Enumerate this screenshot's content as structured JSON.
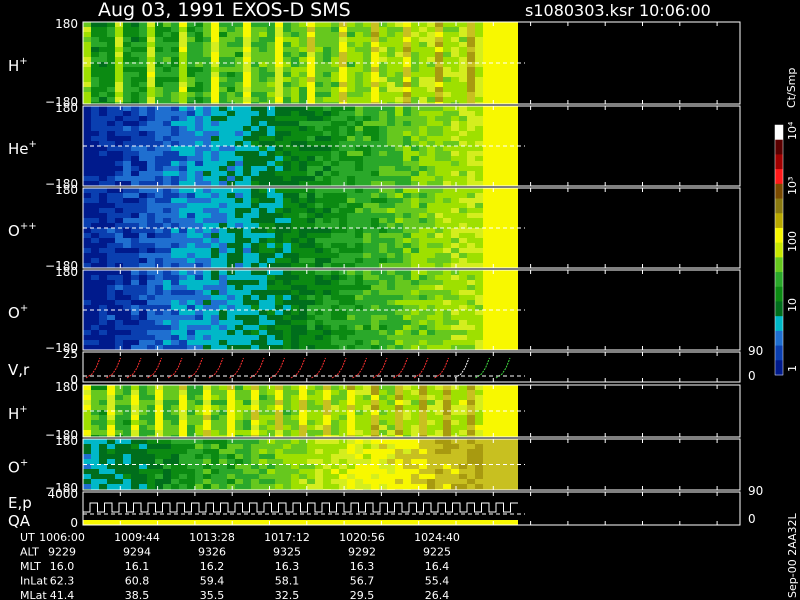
{
  "header": {
    "title": "Aug 03, 1991   EXOS-D SMS",
    "file": "s1080303.ksr  10:06:00"
  },
  "panels": [
    {
      "label": "H",
      "sup": "+",
      "ticks": [
        "180",
        "−180"
      ]
    },
    {
      "label": "He",
      "sup": "+",
      "ticks": [
        "180",
        "−180"
      ]
    },
    {
      "label": "O",
      "sup": "++",
      "ticks": [
        "180",
        "−180"
      ]
    },
    {
      "label": "O",
      "sup": "+",
      "ticks": [
        "180",
        "−180"
      ]
    },
    {
      "label": "V,r",
      "ticks": [
        "25",
        "0"
      ],
      "right_ticks": [
        "90",
        "0"
      ]
    },
    {
      "label": "H",
      "sup": "+",
      "ticks": [
        "180",
        "−180"
      ]
    },
    {
      "label": "O",
      "sup": "+",
      "ticks": [
        "180",
        "−180"
      ]
    },
    {
      "label": "E,p",
      "label2": "QA",
      "ticks": [
        "4000",
        "0"
      ],
      "right_ticks": [
        "90",
        "0"
      ]
    }
  ],
  "colorbar": {
    "title": "Ct/Smp",
    "labels": [
      "10⁴",
      "10³",
      "100",
      "10",
      "1"
    ]
  },
  "table": {
    "rows": [
      [
        "UT",
        "1006:00",
        "1009:44",
        "1013:28",
        "1017:12",
        "1020:56",
        "1024:40"
      ],
      [
        "ALT",
        "9229",
        "9294",
        "9326",
        "9325",
        "9292",
        "9225"
      ],
      [
        "MLT",
        "16.0",
        "16.1",
        "16.2",
        "16.3",
        "16.3",
        "16.4"
      ],
      [
        "InLat",
        "62.3",
        "60.8",
        "59.4",
        "58.1",
        "56.7",
        "55.4"
      ],
      [
        "MLat",
        "41.4",
        "38.5",
        "35.5",
        "32.5",
        "29.5",
        "26.4"
      ]
    ]
  },
  "footer": "Sep-00  2AA32L"
}
